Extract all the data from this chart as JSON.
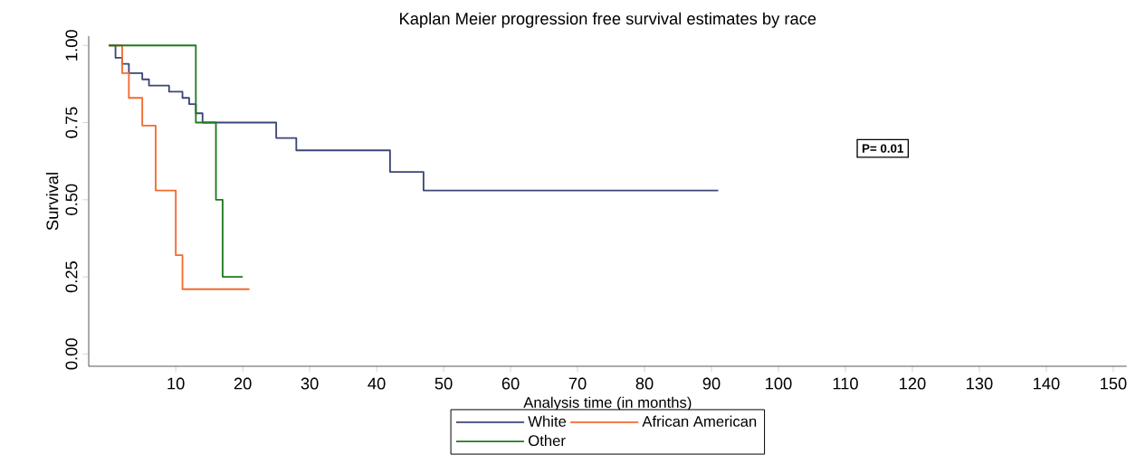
{
  "chart_data": {
    "type": "step",
    "title": "Kaplan Meier progression free survival estimates by race",
    "xlabel": "Analysis time (in months)",
    "ylabel": "Survival",
    "series": [
      {
        "name": "White",
        "color": "#3b4677",
        "x": [
          0,
          1,
          2,
          3,
          5,
          6,
          9,
          11,
          12,
          13,
          14,
          16,
          25,
          28,
          42,
          47,
          91
        ],
        "values": [
          1,
          0.96,
          0.94,
          0.91,
          0.89,
          0.87,
          0.85,
          0.83,
          0.81,
          0.78,
          0.75,
          0.75,
          0.7,
          0.66,
          0.59,
          0.53,
          0.53
        ]
      },
      {
        "name": "African American",
        "color": "#f26a2e",
        "x": [
          0,
          2,
          3,
          5,
          7,
          10,
          11,
          21
        ],
        "values": [
          1,
          0.91,
          0.83,
          0.74,
          0.53,
          0.32,
          0.21,
          0.21
        ]
      },
      {
        "name": "Other",
        "color": "#1f7a1f",
        "x": [
          0,
          13,
          16,
          17,
          20
        ],
        "values": [
          1,
          0.75,
          0.5,
          0.25,
          0.25
        ]
      }
    ],
    "xlim": [
      -3,
      152
    ],
    "ylim": [
      -0.04,
      1.03
    ],
    "xticks": [
      10,
      20,
      30,
      40,
      50,
      60,
      70,
      80,
      90,
      100,
      110,
      120,
      130,
      140,
      150
    ],
    "yticks": [
      {
        "value": 0,
        "label": "0.00"
      },
      {
        "value": 0.25,
        "label": "0.25"
      },
      {
        "value": 0.5,
        "label": "0.50"
      },
      {
        "value": 0.75,
        "label": "0.75"
      },
      {
        "value": 1,
        "label": "1.00"
      }
    ],
    "grid": false,
    "legend": "bottom",
    "marker": "none",
    "line_style": "solid",
    "annotations": [
      "P= 0.01"
    ]
  }
}
